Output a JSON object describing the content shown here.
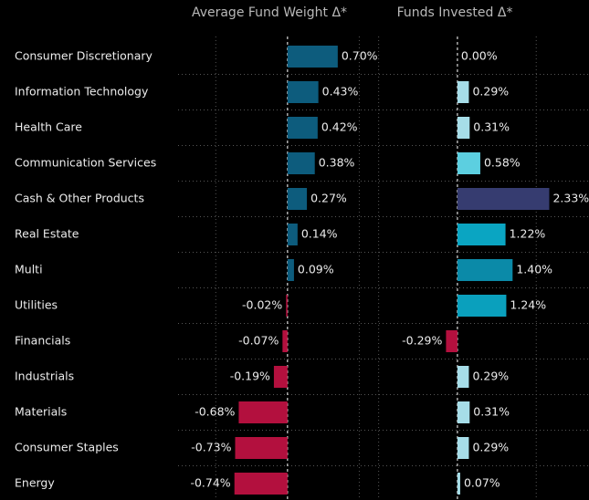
{
  "chart_data": {
    "type": "bar",
    "orientation": "horizontal",
    "categories": [
      "Consumer Discretionary",
      "Information Technology",
      "Health Care",
      "Communication Services",
      "Cash & Other Products",
      "Real Estate",
      "Multi",
      "Utilities",
      "Financials",
      "Industrials",
      "Materials",
      "Consumer Staples",
      "Energy"
    ],
    "panels": [
      {
        "title": "Average Fund Weight Δ*",
        "values": [
          0.7,
          0.43,
          0.42,
          0.38,
          0.27,
          0.14,
          0.09,
          -0.02,
          -0.07,
          -0.19,
          -0.68,
          -0.73,
          -0.74
        ],
        "value_labels": [
          "0.70%",
          "0.43%",
          "0.42%",
          "0.38%",
          "0.27%",
          "0.14%",
          "0.09%",
          "-0.02%",
          "-0.07%",
          "-0.19%",
          "-0.68%",
          "-0.73%",
          "-0.74%"
        ],
        "colors": [
          "#0d5c7d",
          "#0d5c7d",
          "#0d5c7d",
          "#0d5c7d",
          "#0d5c7d",
          "#0d5c7d",
          "#0d5c7d",
          "#b3103e",
          "#b3103e",
          "#b3103e",
          "#b3103e",
          "#b3103e",
          "#b3103e"
        ],
        "xlim": [
          -1.5,
          1.3
        ],
        "xticks": [
          -1,
          0,
          1
        ]
      },
      {
        "title": "Funds Invested Δ*",
        "values": [
          0.0,
          0.29,
          0.31,
          0.58,
          2.33,
          1.22,
          1.4,
          1.24,
          -0.29,
          0.29,
          0.31,
          0.29,
          0.07
        ],
        "value_labels": [
          "0.00%",
          "0.29%",
          "0.31%",
          "0.58%",
          "2.33%",
          "1.22%",
          "1.40%",
          "1.24%",
          "-0.29%",
          "0.29%",
          "0.31%",
          "0.29%",
          "0.07%"
        ],
        "colors": [
          "#e6f6fa",
          "#a6dde8",
          "#a6dde8",
          "#5ccfe0",
          "#363c70",
          "#0aa5c2",
          "#0b8aa8",
          "#0aa0bd",
          "#b3103e",
          "#a6dde8",
          "#a6dde8",
          "#a6dde8",
          "#a6dde8"
        ],
        "xlim": [
          -2.2,
          3.2
        ],
        "xticks": [
          -2,
          0,
          2
        ]
      }
    ]
  }
}
